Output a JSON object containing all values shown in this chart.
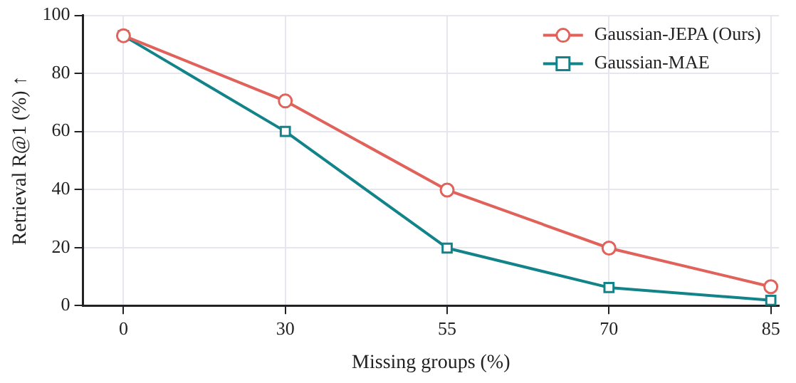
{
  "chart_data": {
    "type": "line",
    "xlabel": "Missing groups (%)",
    "ylabel": "Retrieval R@1 (%) ↑",
    "categories": [
      "0",
      "30",
      "55",
      "70",
      "85"
    ],
    "series": [
      {
        "name": "Gaussian-JEPA (Ours)",
        "color": "#e0625a",
        "marker": "circle",
        "values": [
          93,
          70.5,
          39.8,
          19.8,
          6.5
        ]
      },
      {
        "name": "Gaussian-MAE",
        "color": "#13838a",
        "marker": "square",
        "values": [
          93,
          60,
          19.8,
          6.2,
          1.8
        ]
      }
    ],
    "ylim": [
      0,
      100
    ],
    "yticks": [
      0,
      20,
      40,
      60,
      80,
      100
    ],
    "grid": true,
    "legend": "top right",
    "line_style": "solid"
  }
}
